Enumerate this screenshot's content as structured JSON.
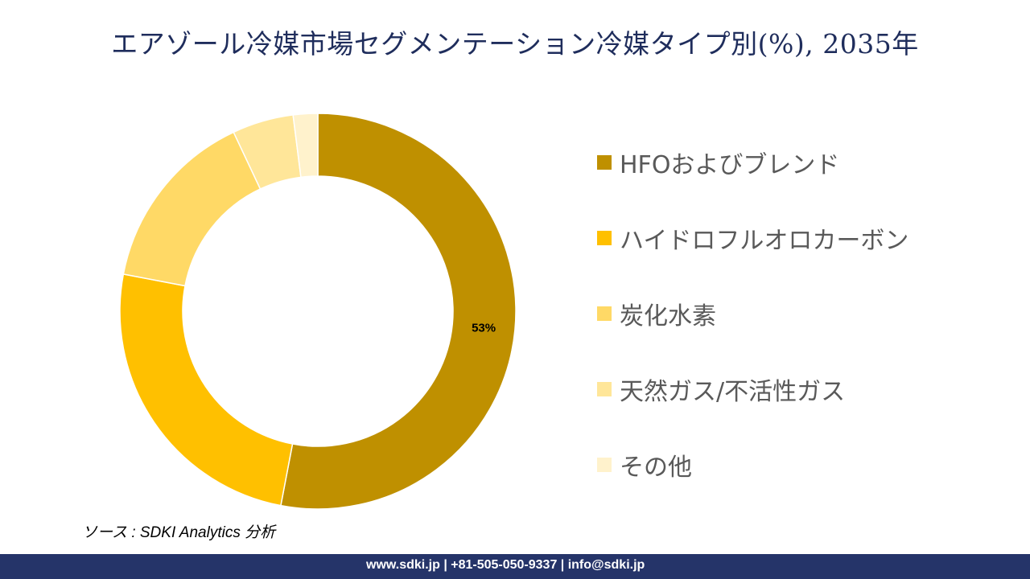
{
  "chart_data": {
    "type": "pie",
    "subtype": "donut",
    "title": "エアゾール冷媒市場セグメンテーション冷媒タイプ別(%), 2035年",
    "categories": [
      "HFOおよびブレンド",
      "ハイドロフルオロカーボン",
      "炭化水素",
      "天然ガス/不活性ガス",
      "その他"
    ],
    "values": [
      53,
      25,
      15,
      5,
      2
    ],
    "colors": [
      "#BF9000",
      "#FFC000",
      "#FFD966",
      "#FFE699",
      "#FFF2CC"
    ],
    "data_labels": [
      "53%",
      "",
      "",
      "",
      ""
    ],
    "legend_position": "right"
  },
  "source": "ソース : SDKI Analytics 分析",
  "footer": "www.sdki.jp | +81-505-050-9337 | info@sdki.jp"
}
